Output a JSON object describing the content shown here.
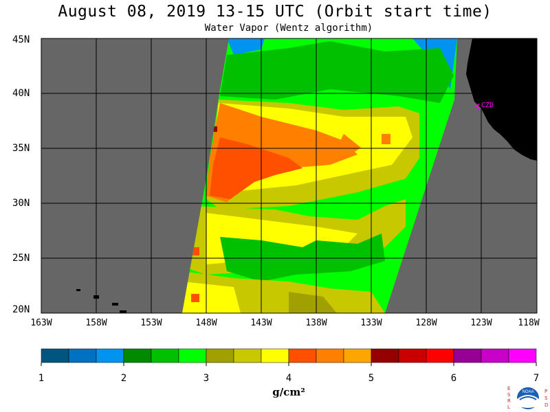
{
  "title": "August 08, 2019  13-15 UTC  (Orbit start time)",
  "subtitle": "Water Vapor (Wentz algorithm)",
  "map": {
    "lat_labels": [
      "45N",
      "40N",
      "35N",
      "30N",
      "25N",
      "20N"
    ],
    "lon_labels": [
      "163W",
      "158W",
      "153W",
      "148W",
      "143W",
      "138W",
      "133W",
      "128W",
      "123W",
      "118W"
    ],
    "station_label": "CZD"
  },
  "colorbar": {
    "labels": [
      "1",
      "2",
      "3",
      "4",
      "5",
      "6",
      "7"
    ],
    "units": "g/cm²",
    "colors": [
      "#00557f",
      "#0070c0",
      "#0094f0",
      "#008a00",
      "#00c000",
      "#00ff00",
      "#a0a000",
      "#c8c800",
      "#ffff00",
      "#ff5000",
      "#ff7f00",
      "#ffa500",
      "#960000",
      "#c80000",
      "#ff0000",
      "#960096",
      "#c800c8",
      "#ff00ff"
    ]
  },
  "colors": {
    "missing": "#666666",
    "land": "#000000",
    "grid": "#000000",
    "station": "#ff00ff"
  },
  "logo": {
    "left_letters": [
      "E",
      "S",
      "R",
      "L"
    ],
    "right_letters": [
      "P",
      "S",
      "D"
    ],
    "text": "NOAA"
  }
}
